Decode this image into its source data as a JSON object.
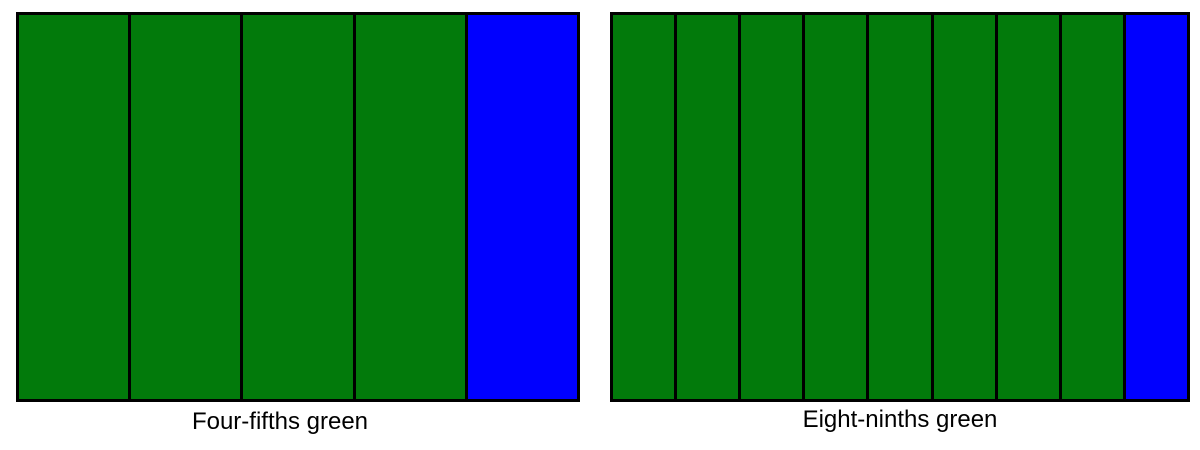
{
  "colors": {
    "shaded": "#027a0b",
    "unshaded": "#0000ff",
    "outline": "#000000"
  },
  "diagrams": [
    {
      "caption": "Four-fifths green",
      "total_parts": 5,
      "shaded_parts": 4,
      "shaded_color_name": "green",
      "unshaded_color_name": "blue"
    },
    {
      "caption": "Eight-ninths green",
      "total_parts": 9,
      "shaded_parts": 8,
      "shaded_color_name": "green",
      "unshaded_color_name": "blue"
    }
  ]
}
